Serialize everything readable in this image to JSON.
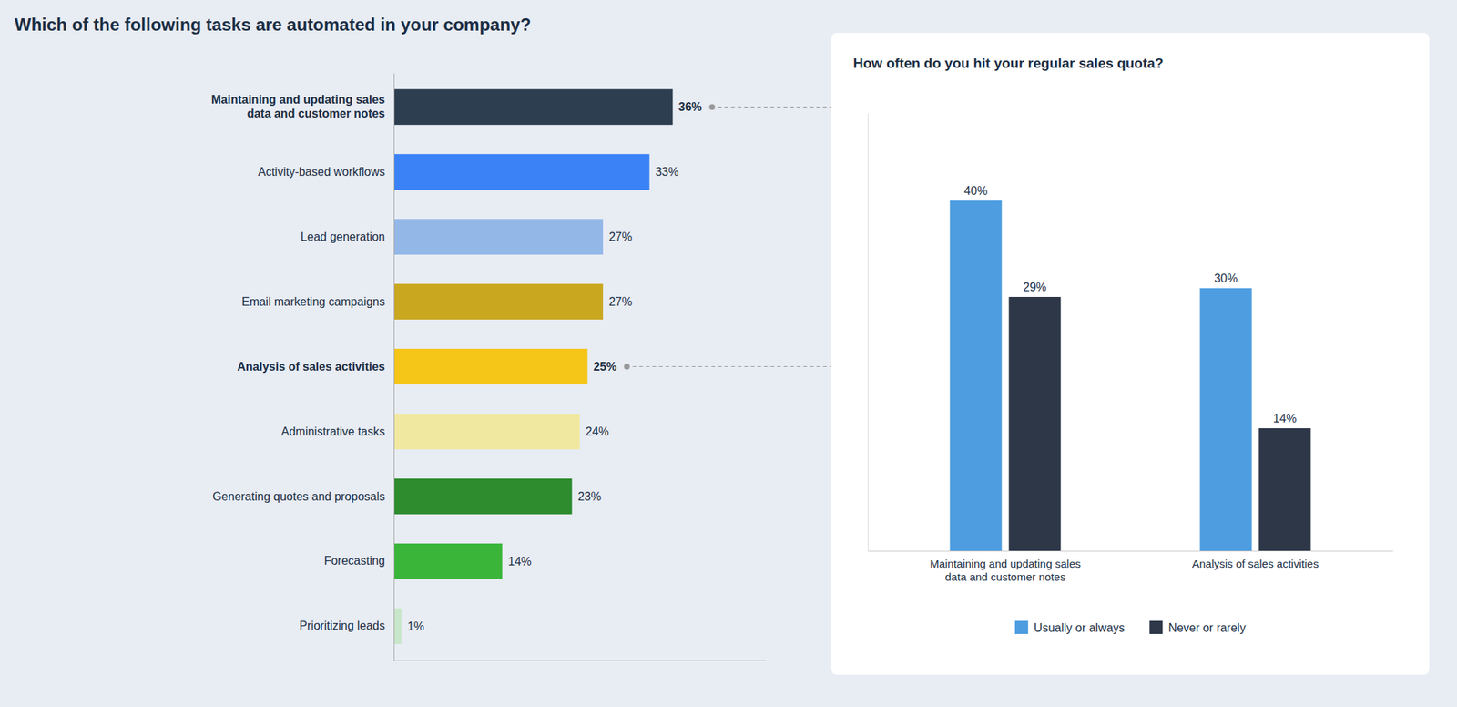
{
  "chart_data": [
    {
      "type": "bar",
      "title": "Which of the following tasks are automated in your company?",
      "orientation": "horizontal",
      "categories": [
        "Maintaining and updating sales\ndata and customer notes",
        "Activity-based workflows",
        "Lead generation",
        "Email marketing campaigns",
        "Analysis of sales activities",
        "Administrative tasks",
        "Generating quotes and proposals",
        "Forecasting",
        "Prioritizing leads"
      ],
      "values": [
        36,
        33,
        27,
        27,
        25,
        24,
        23,
        14,
        1
      ],
      "value_labels": [
        "36%",
        "33%",
        "27%",
        "27%",
        "25%",
        "24%",
        "23%",
        "14%",
        "1%"
      ],
      "colors": [
        "#2d3e50",
        "#3b82f6",
        "#93b8e8",
        "#c9a820",
        "#f5c518",
        "#f0e8a0",
        "#2e8b2e",
        "#3ab53a",
        "#c8e6c9"
      ],
      "xlim": [
        0,
        48
      ],
      "data_labels": true,
      "tick_labels": "y"
    },
    {
      "type": "bar",
      "title": "How often do you hit your regular sales quota?",
      "categories": [
        "Maintaining and updating sales\ndata and customer notes",
        "Analysis of sales activities"
      ],
      "series": [
        {
          "name": "Usually or always",
          "color": "#4d9de0",
          "values": [
            40,
            30
          ],
          "value_labels": [
            "40%",
            "30%"
          ]
        },
        {
          "name": "Never or rarely",
          "color": "#2d3748",
          "values": [
            29,
            14
          ],
          "value_labels": [
            "29%",
            "14%"
          ]
        }
      ],
      "ylim": [
        0,
        50
      ],
      "data_labels": true,
      "tick_labels": "x",
      "legend": "bottom"
    }
  ]
}
